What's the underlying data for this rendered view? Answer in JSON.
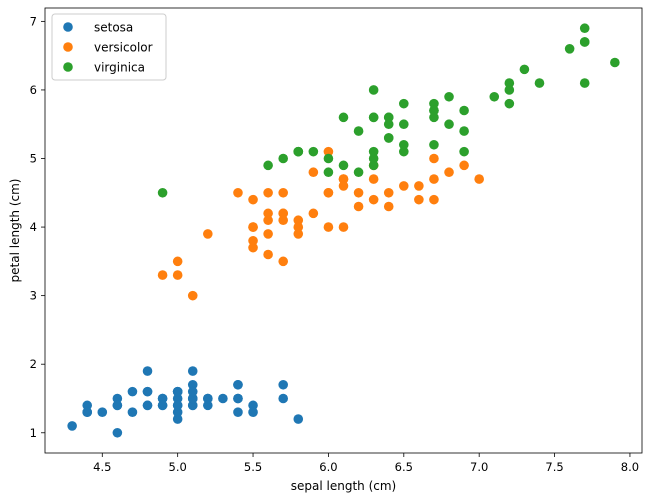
{
  "chart_data": {
    "type": "scatter",
    "title": "",
    "xlabel": "sepal length (cm)",
    "ylabel": "petal length (cm)",
    "xlim": [
      4.12,
      8.08
    ],
    "ylim": [
      0.705,
      7.195
    ],
    "xticks": [
      4.5,
      5.0,
      5.5,
      6.0,
      6.5,
      7.0,
      7.5,
      8.0
    ],
    "xtick_labels": [
      "4.5",
      "5.0",
      "5.5",
      "6.0",
      "6.5",
      "7.0",
      "7.5",
      "8.0"
    ],
    "yticks": [
      1,
      2,
      3,
      4,
      5,
      6,
      7
    ],
    "ytick_labels": [
      "1",
      "2",
      "3",
      "4",
      "5",
      "6",
      "7"
    ],
    "grid": false,
    "legend_position": "top-left",
    "series": [
      {
        "name": "setosa",
        "color": "#1f77b4",
        "points": [
          [
            5.1,
            1.4
          ],
          [
            4.9,
            1.4
          ],
          [
            4.7,
            1.3
          ],
          [
            4.6,
            1.5
          ],
          [
            5.0,
            1.4
          ],
          [
            5.4,
            1.7
          ],
          [
            4.6,
            1.4
          ],
          [
            5.0,
            1.5
          ],
          [
            4.4,
            1.4
          ],
          [
            4.9,
            1.5
          ],
          [
            5.4,
            1.5
          ],
          [
            4.8,
            1.6
          ],
          [
            4.8,
            1.4
          ],
          [
            4.3,
            1.1
          ],
          [
            5.8,
            1.2
          ],
          [
            5.7,
            1.5
          ],
          [
            5.4,
            1.3
          ],
          [
            5.1,
            1.4
          ],
          [
            5.7,
            1.7
          ],
          [
            5.1,
            1.5
          ],
          [
            5.4,
            1.7
          ],
          [
            5.1,
            1.5
          ],
          [
            4.6,
            1.0
          ],
          [
            5.1,
            1.7
          ],
          [
            4.8,
            1.9
          ],
          [
            5.0,
            1.6
          ],
          [
            5.0,
            1.6
          ],
          [
            5.2,
            1.5
          ],
          [
            5.2,
            1.4
          ],
          [
            4.7,
            1.6
          ],
          [
            4.8,
            1.6
          ],
          [
            5.4,
            1.5
          ],
          [
            5.2,
            1.5
          ],
          [
            5.5,
            1.4
          ],
          [
            4.9,
            1.5
          ],
          [
            5.0,
            1.2
          ],
          [
            5.5,
            1.3
          ],
          [
            4.9,
            1.4
          ],
          [
            4.4,
            1.3
          ],
          [
            5.1,
            1.5
          ],
          [
            5.0,
            1.3
          ],
          [
            4.5,
            1.3
          ],
          [
            4.4,
            1.3
          ],
          [
            5.0,
            1.6
          ],
          [
            5.1,
            1.9
          ],
          [
            4.8,
            1.4
          ],
          [
            5.1,
            1.6
          ],
          [
            4.6,
            1.4
          ],
          [
            5.3,
            1.5
          ],
          [
            5.0,
            1.4
          ]
        ]
      },
      {
        "name": "versicolor",
        "color": "#ff7f0e",
        "points": [
          [
            7.0,
            4.7
          ],
          [
            6.4,
            4.5
          ],
          [
            6.9,
            4.9
          ],
          [
            5.5,
            4.0
          ],
          [
            6.5,
            4.6
          ],
          [
            5.7,
            4.5
          ],
          [
            6.3,
            4.7
          ],
          [
            4.9,
            3.3
          ],
          [
            6.6,
            4.6
          ],
          [
            5.2,
            3.9
          ],
          [
            5.0,
            3.5
          ],
          [
            5.9,
            4.2
          ],
          [
            6.0,
            4.0
          ],
          [
            6.1,
            4.7
          ],
          [
            5.6,
            3.6
          ],
          [
            6.7,
            4.4
          ],
          [
            5.6,
            4.5
          ],
          [
            5.8,
            4.1
          ],
          [
            6.2,
            4.5
          ],
          [
            5.6,
            3.9
          ],
          [
            5.9,
            4.8
          ],
          [
            6.1,
            4.0
          ],
          [
            6.3,
            4.9
          ],
          [
            6.1,
            4.7
          ],
          [
            6.4,
            4.3
          ],
          [
            6.6,
            4.4
          ],
          [
            6.8,
            4.8
          ],
          [
            6.7,
            5.0
          ],
          [
            6.0,
            4.5
          ],
          [
            5.7,
            3.5
          ],
          [
            5.5,
            3.8
          ],
          [
            5.5,
            3.7
          ],
          [
            5.8,
            3.9
          ],
          [
            6.0,
            5.1
          ],
          [
            5.4,
            4.5
          ],
          [
            6.0,
            4.5
          ],
          [
            6.7,
            4.7
          ],
          [
            6.3,
            4.4
          ],
          [
            5.6,
            4.1
          ],
          [
            5.5,
            4.0
          ],
          [
            5.5,
            4.4
          ],
          [
            6.1,
            4.6
          ],
          [
            5.8,
            4.0
          ],
          [
            5.0,
            3.3
          ],
          [
            5.6,
            4.2
          ],
          [
            5.7,
            4.2
          ],
          [
            5.7,
            4.2
          ],
          [
            6.2,
            4.3
          ],
          [
            5.1,
            3.0
          ],
          [
            5.7,
            4.1
          ]
        ]
      },
      {
        "name": "virginica",
        "color": "#2ca02c",
        "points": [
          [
            6.3,
            6.0
          ],
          [
            5.8,
            5.1
          ],
          [
            7.1,
            5.9
          ],
          [
            6.3,
            5.6
          ],
          [
            6.5,
            5.8
          ],
          [
            7.6,
            6.6
          ],
          [
            4.9,
            4.5
          ],
          [
            7.3,
            6.3
          ],
          [
            6.7,
            5.8
          ],
          [
            7.2,
            6.1
          ],
          [
            6.5,
            5.1
          ],
          [
            6.4,
            5.3
          ],
          [
            6.8,
            5.5
          ],
          [
            5.7,
            5.0
          ],
          [
            5.8,
            5.1
          ],
          [
            6.4,
            5.3
          ],
          [
            6.5,
            5.5
          ],
          [
            7.7,
            6.7
          ],
          [
            7.7,
            6.9
          ],
          [
            6.0,
            5.0
          ],
          [
            6.9,
            5.7
          ],
          [
            5.6,
            4.9
          ],
          [
            7.7,
            6.7
          ],
          [
            6.3,
            4.9
          ],
          [
            6.7,
            5.7
          ],
          [
            7.2,
            6.0
          ],
          [
            6.2,
            4.8
          ],
          [
            6.1,
            4.9
          ],
          [
            6.4,
            5.6
          ],
          [
            7.2,
            5.8
          ],
          [
            7.4,
            6.1
          ],
          [
            7.9,
            6.4
          ],
          [
            6.4,
            5.6
          ],
          [
            6.3,
            5.1
          ],
          [
            6.1,
            5.6
          ],
          [
            7.7,
            6.1
          ],
          [
            6.3,
            5.6
          ],
          [
            6.4,
            5.5
          ],
          [
            6.0,
            4.8
          ],
          [
            6.9,
            5.4
          ],
          [
            6.7,
            5.6
          ],
          [
            6.9,
            5.1
          ],
          [
            5.8,
            5.1
          ],
          [
            6.8,
            5.9
          ],
          [
            6.7,
            5.7
          ],
          [
            6.7,
            5.2
          ],
          [
            6.3,
            5.0
          ],
          [
            6.5,
            5.2
          ],
          [
            6.2,
            5.4
          ],
          [
            5.9,
            5.1
          ]
        ]
      }
    ]
  }
}
